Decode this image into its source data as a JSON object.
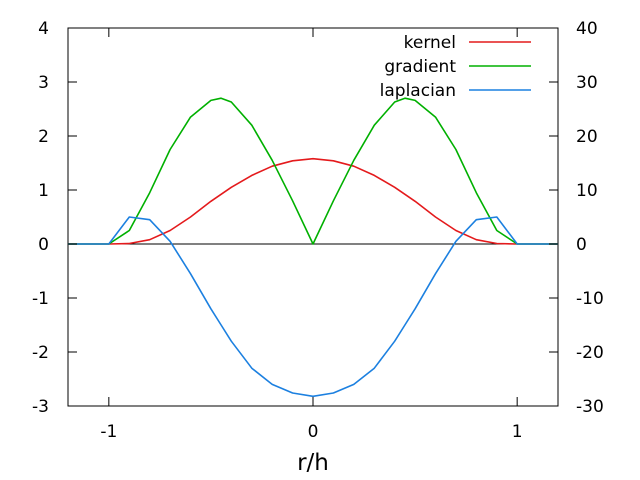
{
  "chart_data": {
    "type": "line",
    "title": "",
    "xlabel": "r/h",
    "ylabel": "",
    "y2label": "",
    "xlim": [
      -1.2,
      1.2
    ],
    "ylim": [
      -3,
      4
    ],
    "y2lim": [
      -30,
      40
    ],
    "x_ticks": [
      -1,
      0,
      1
    ],
    "x_tick_labels": [
      "-1",
      "0",
      "1"
    ],
    "y_ticks": [
      -3,
      -2,
      -1,
      0,
      1,
      2,
      3,
      4
    ],
    "y_tick_labels": [
      "-3",
      "-2",
      "-1",
      "0",
      "1",
      "2",
      "3",
      "4"
    ],
    "y2_ticks": [
      -30,
      -20,
      -10,
      0,
      10,
      20,
      30,
      40
    ],
    "y2_tick_labels": [
      "-30",
      "-20",
      "-10",
      "0",
      "10",
      "20",
      "30",
      "40"
    ],
    "grid": false,
    "zero_line": true,
    "legend": {
      "position": "top-right"
    },
    "x": [
      -1.2,
      -1.0,
      -0.9,
      -0.8,
      -0.7,
      -0.6,
      -0.5,
      -0.45,
      -0.4,
      -0.3,
      -0.2,
      -0.1,
      0.0,
      0.1,
      0.2,
      0.3,
      0.4,
      0.45,
      0.5,
      0.6,
      0.7,
      0.8,
      0.9,
      1.0,
      1.2
    ],
    "series": [
      {
        "name": "kernel",
        "color": "#e41a1c",
        "axis": "left",
        "values": [
          0,
          0,
          0.01,
          0.08,
          0.25,
          0.5,
          0.79,
          0.92,
          1.05,
          1.27,
          1.44,
          1.54,
          1.58,
          1.54,
          1.44,
          1.27,
          1.05,
          0.92,
          0.79,
          0.5,
          0.25,
          0.08,
          0.01,
          0,
          0
        ]
      },
      {
        "name": "gradient",
        "color": "#00b000",
        "axis": "left",
        "values": [
          0,
          0,
          0.25,
          0.95,
          1.75,
          2.35,
          2.66,
          2.7,
          2.63,
          2.2,
          1.55,
          0.8,
          0,
          0.8,
          1.55,
          2.2,
          2.63,
          2.7,
          2.66,
          2.35,
          1.75,
          0.95,
          0.25,
          0,
          0
        ]
      },
      {
        "name": "laplacian",
        "color": "#1c80e0",
        "axis": "left",
        "values": [
          0,
          0,
          0.5,
          0.45,
          0.05,
          -0.55,
          -1.2,
          -1.5,
          -1.8,
          -2.3,
          -2.6,
          -2.76,
          -2.82,
          -2.76,
          -2.6,
          -2.3,
          -1.8,
          -1.5,
          -1.2,
          -0.55,
          0.05,
          0.45,
          0.5,
          0,
          0
        ]
      }
    ]
  }
}
